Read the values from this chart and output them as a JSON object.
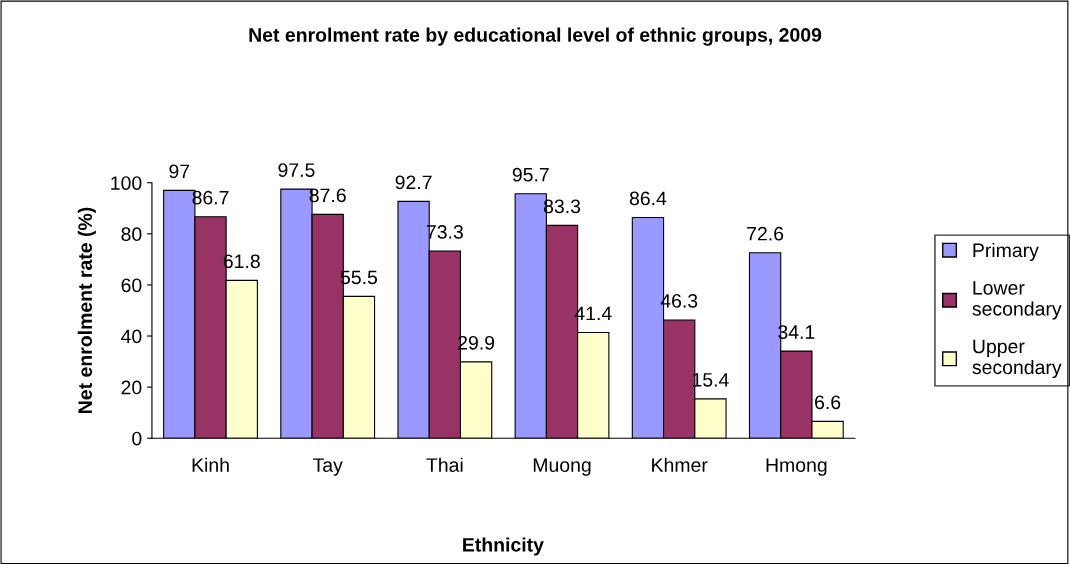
{
  "chart_data": {
    "type": "bar",
    "title": "Net enrolment rate by educational level of ethnic groups, 2009",
    "xlabel": "Ethnicity",
    "ylabel": "Net enrolment rate (%)",
    "categories": [
      "Kinh",
      "Tay",
      "Thai",
      "Muong",
      "Khmer",
      "Hmong"
    ],
    "series": [
      {
        "name": "Primary",
        "color": "#9999ff",
        "values": [
          97,
          97.5,
          92.7,
          95.7,
          86.4,
          72.6
        ]
      },
      {
        "name": "Lower secondary",
        "color": "#993366",
        "values": [
          86.7,
          87.6,
          73.3,
          83.3,
          46.3,
          34.1
        ]
      },
      {
        "name": "Upper secondary",
        "color": "#ffffcc",
        "values": [
          61.8,
          55.5,
          29.9,
          41.4,
          15.4,
          6.6
        ]
      }
    ],
    "ylim": [
      0,
      100
    ],
    "yticks": [
      0,
      20,
      40,
      60,
      80,
      100
    ],
    "data_labels": true,
    "legend": "right",
    "grid": false
  }
}
